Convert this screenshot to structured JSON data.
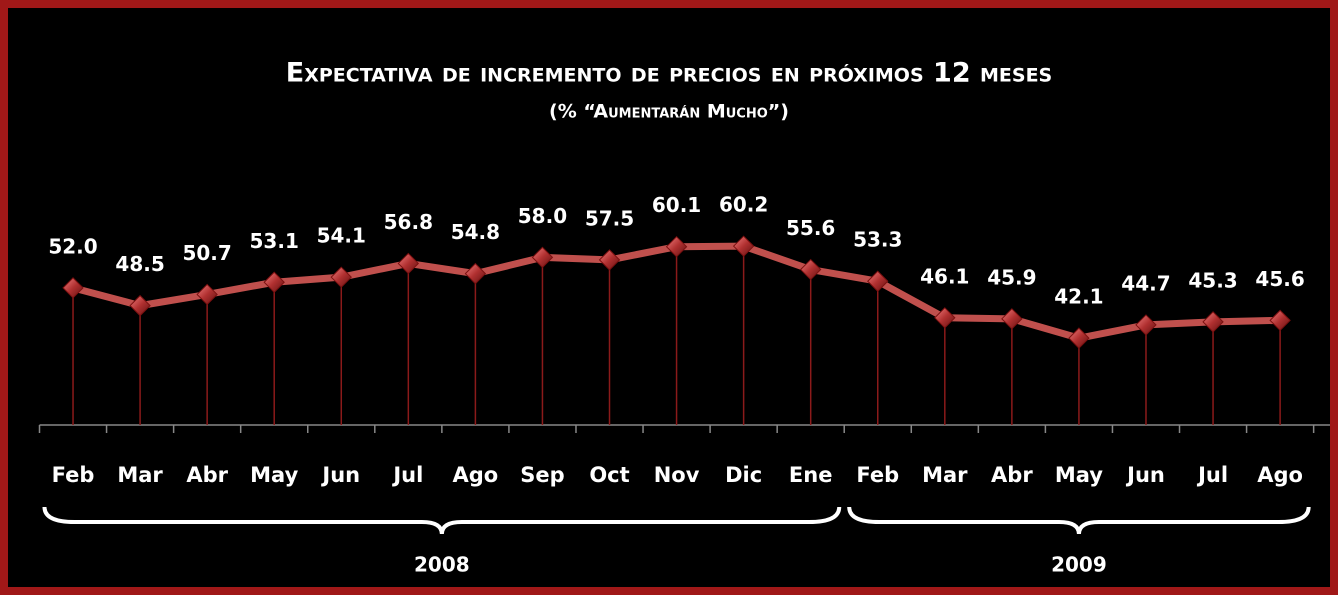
{
  "chart_data": {
    "type": "line",
    "title": "Expectativa de incremento de precios en próximos 12 meses",
    "subtitle": "(% “Aumentarán Mucho”)",
    "categories": [
      "Feb",
      "Mar",
      "Abr",
      "May",
      "Jun",
      "Jul",
      "Ago",
      "Sep",
      "Oct",
      "Nov",
      "Dic",
      "Ene",
      "Feb",
      "Mar",
      "Abr",
      "May",
      "Jun",
      "Jul",
      "Ago"
    ],
    "values": [
      52.0,
      48.5,
      50.7,
      53.1,
      54.1,
      56.8,
      54.8,
      58.0,
      57.5,
      60.1,
      60.2,
      55.6,
      53.3,
      46.1,
      45.9,
      42.1,
      44.7,
      45.3,
      45.6
    ],
    "value_labels": [
      "52.0",
      "48.5",
      "50.7",
      "53.1",
      "54.1",
      "56.8",
      "54.8",
      "58.0",
      "57.5",
      "60.1",
      "60.2",
      "55.6",
      "53.3",
      "46.1",
      "45.9",
      "42.1",
      "44.7",
      "45.3",
      "45.6"
    ],
    "color": "#c0504d",
    "ylim": [
      25,
      80
    ],
    "x_groups": [
      {
        "label": "2008",
        "from": 0,
        "to": 11
      },
      {
        "label": "2009",
        "from": 12,
        "to": 18
      }
    ]
  }
}
